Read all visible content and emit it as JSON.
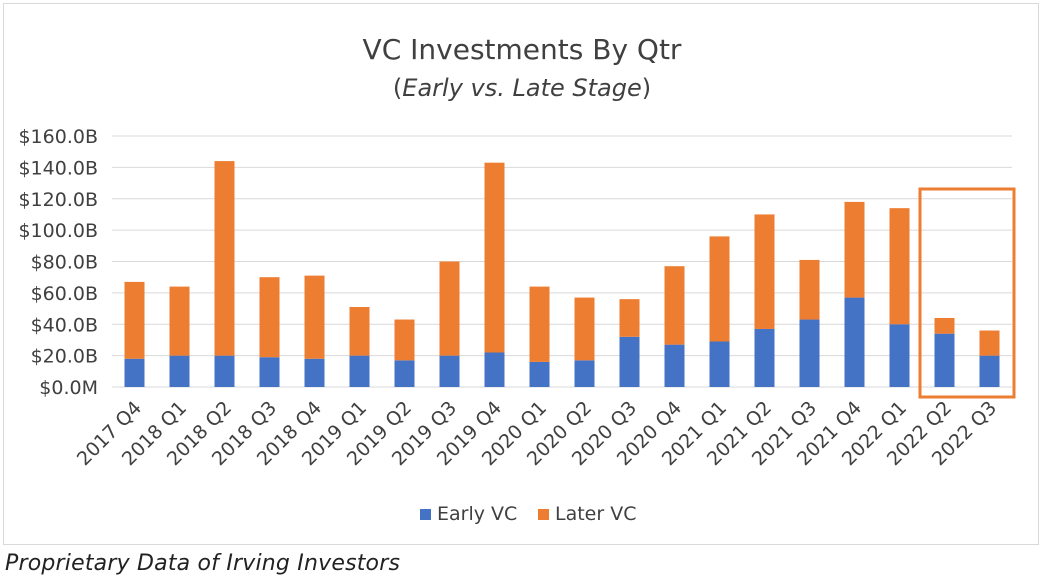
{
  "chart_data": {
    "type": "bar",
    "stacked": true,
    "title": "VC Investments By Qtr",
    "subtitle_prefix": "(",
    "subtitle_italic": "Early vs. Late Stage",
    "subtitle_suffix": ")",
    "categories": [
      "2017 Q4",
      "2018 Q1",
      "2018 Q2",
      "2018 Q3",
      "2018 Q4",
      "2019 Q1",
      "2019 Q2",
      "2019 Q3",
      "2019 Q4",
      "2020 Q1",
      "2020 Q2",
      "2020 Q3",
      "2020 Q4",
      "2021 Q1",
      "2021 Q2",
      "2021 Q3",
      "2021 Q4",
      "2022 Q1",
      "2022 Q2",
      "2022 Q3"
    ],
    "series": [
      {
        "name": "Early VC",
        "color": "#4472C4",
        "values": [
          18,
          20,
          20,
          19,
          18,
          20,
          17,
          20,
          22,
          16,
          17,
          32,
          27,
          29,
          37,
          43,
          57,
          40,
          34,
          20
        ]
      },
      {
        "name": "Later VC",
        "color": "#ED7D31",
        "values": [
          49,
          44,
          124,
          51,
          53,
          31,
          26,
          60,
          121,
          48,
          40,
          24,
          50,
          67,
          73,
          38,
          61,
          74,
          10,
          16
        ]
      }
    ],
    "ylim": [
      0,
      160
    ],
    "yticks": [
      0,
      20,
      40,
      60,
      80,
      100,
      120,
      140,
      160
    ],
    "ytick_labels": [
      "$0.0M",
      "$20.0B",
      "$40.0B",
      "$60.0B",
      "$80.0B",
      "$100.0B",
      "$120.0B",
      "$140.0B",
      "$160.0B"
    ],
    "xlabel": "",
    "ylabel": "",
    "grid": true,
    "legend_position": "bottom",
    "highlight": {
      "from_category": "2022 Q2",
      "to_category": "2022 Q3",
      "color": "#ED7D31"
    }
  },
  "footer": {
    "note": "Proprietary Data of Irving Investors"
  }
}
